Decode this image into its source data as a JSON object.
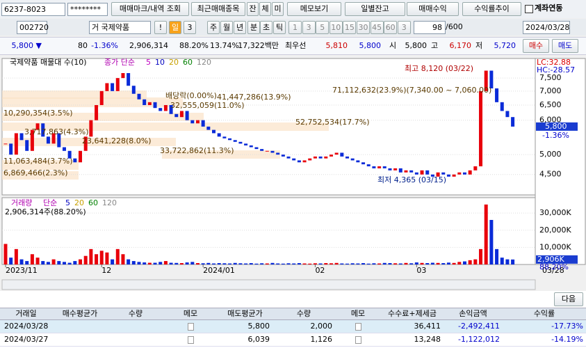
{
  "toolbar": {
    "account": "6237-8023",
    "password": "********",
    "buttons": [
      "매매마크/내역 조회",
      "최근매매종목",
      "잔",
      "체",
      "미",
      "메모보기",
      "일별잔고",
      "매매수익",
      "수익률추이"
    ],
    "checkbox": "계좌연동"
  },
  "toolbar2": {
    "code": "002720",
    "name": "거 국제약품",
    "alert": "!",
    "period": [
      "일",
      "3",
      "주",
      "월",
      "년",
      "분",
      "초",
      "틱"
    ],
    "intervals": [
      "1",
      "3",
      "5",
      "10",
      "15",
      "30",
      "45",
      "60",
      "3"
    ],
    "count": "98",
    "count_max": "/600",
    "date": "2024/03/28"
  },
  "quote": [
    "5,800 ▼",
    "80",
    "-1.36%",
    "2,906,314",
    "88.20%",
    "13.74%",
    "17,322백만",
    "최우선",
    "5,810",
    "5,800",
    "시",
    "5,800",
    "고",
    "6,170",
    "저",
    "5,720",
    "매수",
    "매도"
  ],
  "chart_data": [
    {
      "type": "candlestick",
      "title": "국제약품 매물대 수(10)",
      "legend": [
        "종가 단순",
        "5",
        "10",
        "20",
        "60",
        "120"
      ],
      "log": true,
      "ylim": [
        4040,
        8320
      ],
      "yticks": [
        {
          "value": 7500,
          "label": "7,500"
        },
        {
          "value": 7000,
          "label": "7,000"
        },
        {
          "value": 6500,
          "label": "6,500"
        },
        {
          "value": 6000,
          "label": "6,000"
        },
        {
          "value": 5000,
          "label": "5,000"
        },
        {
          "value": 4500,
          "label": "4,500"
        }
      ],
      "right_labels": [
        "LC:32.88",
        "HC:-28.57"
      ],
      "last_label": "5,800",
      "last_change": "-1.36%",
      "cursor_date": "03/28",
      "categories": [
        "2023/11",
        null,
        null,
        null,
        null,
        null,
        null,
        null,
        null,
        null,
        null,
        null,
        null,
        null,
        null,
        null,
        null,
        null,
        "12",
        null,
        null,
        null,
        null,
        null,
        null,
        null,
        null,
        null,
        null,
        null,
        null,
        null,
        null,
        null,
        null,
        null,
        null,
        "2024/01",
        null,
        null,
        null,
        null,
        null,
        null,
        null,
        null,
        null,
        null,
        null,
        null,
        null,
        null,
        null,
        null,
        null,
        null,
        null,
        null,
        "02",
        null,
        null,
        null,
        null,
        null,
        null,
        null,
        null,
        null,
        null,
        null,
        null,
        null,
        null,
        null,
        null,
        null,
        null,
        "03",
        null,
        null,
        null,
        null,
        null,
        null,
        null,
        null,
        null,
        null,
        null,
        null,
        null,
        null,
        null,
        null,
        null,
        null
      ],
      "close": [
        5300,
        5000,
        5600,
        5400,
        5100,
        5700,
        5900,
        5500,
        5300,
        5600,
        5200,
        5100,
        4900,
        4800,
        5100,
        5500,
        6000,
        6500,
        7000,
        7300,
        7000,
        7500,
        7700,
        7200,
        6900,
        6700,
        6500,
        6600,
        6400,
        6300,
        6500,
        6200,
        6100,
        6300,
        6000,
        5900,
        6000,
        5800,
        5700,
        5600,
        5500,
        5450,
        5400,
        5350,
        5300,
        5250,
        5200,
        5150,
        5100,
        5100,
        5050,
        5000,
        4950,
        4900,
        4850,
        4800,
        4850,
        4900,
        4950,
        4900,
        4950,
        5000,
        5050,
        4950,
        4900,
        4850,
        4800,
        4750,
        4700,
        4650,
        4700,
        4650,
        4600,
        4650,
        4550,
        4600,
        4550,
        4500,
        4600,
        4500,
        4450,
        4550,
        4500,
        4450,
        4500,
        4550,
        4500,
        4600,
        4700,
        7000,
        7800,
        7100,
        6600,
        6300,
        6100,
        5800
      ],
      "annotations": [
        "최고 8,120 (03/22)",
        "71,112,632(23.9%)(7,340.00 ~ 7,060.00)",
        "41,447,286(13.9%)",
        "배당락(0.00%)",
        "32,555,059(11.0%)",
        "10,290,354(3.5%)",
        "3,717,863(4.3%)",
        "52,752,534(17.7%)",
        "23,641,228(8.0%)",
        "33,722,862(11.3%)",
        "11,063,484(3.7%)",
        "6,869,466(2.3%)",
        "최저 4,365 (03/15)"
      ]
    },
    {
      "type": "bar",
      "title": "거래량",
      "legend": [
        "단순",
        "5",
        "20",
        "60",
        "120"
      ],
      "subtitle": "2,906,314주(88.20%)",
      "ylim": [
        0,
        39000
      ],
      "yticks": [
        {
          "value": 30000,
          "label": "30,000K"
        },
        {
          "value": 20000,
          "label": "20,000K"
        },
        {
          "value": 10000,
          "label": "10,000K"
        }
      ],
      "last_label": "2,906K",
      "last_pct": "88.20%",
      "values": [
        12000,
        4000,
        9000,
        3000,
        2000,
        6000,
        4000,
        2000,
        1500,
        3000,
        2000,
        1500,
        1000,
        2000,
        3000,
        5000,
        9000,
        6000,
        8000,
        7000,
        3000,
        9000,
        6000,
        3000,
        2000,
        1500,
        1200,
        1000,
        1000,
        1500,
        2000,
        1000,
        900,
        800,
        1200,
        1500,
        800,
        700,
        900,
        600,
        800,
        700,
        600,
        900,
        700,
        600,
        800,
        500,
        700,
        600,
        900,
        600,
        500,
        700,
        600,
        800,
        600,
        500,
        700,
        600,
        800,
        700,
        900,
        600,
        500,
        700,
        600,
        800,
        500,
        700,
        600,
        900,
        800,
        700,
        600,
        900,
        700,
        1200,
        900,
        800,
        1000,
        900,
        800,
        1100,
        900,
        1500,
        1800,
        2500,
        3000,
        9000,
        35000,
        26000,
        9000,
        4000,
        3000,
        2906
      ]
    }
  ],
  "table": {
    "next": "다음",
    "headers": [
      "거래일",
      "매수평균가",
      "수량",
      "메모",
      "매도평균가",
      "수량",
      "메모",
      "수수료+제세금",
      "손익금액",
      "수익률"
    ],
    "rows": [
      {
        "date": "2024/03/28",
        "sell_avg": "5,800",
        "sell_qty": "2,000",
        "fee": "36,411",
        "pnl": "-2,492,411",
        "ret": "-17.73%"
      },
      {
        "date": "2024/03/27",
        "sell_avg": "6,039",
        "sell_qty": "1,126",
        "fee": "13,248",
        "pnl": "-1,122,012",
        "ret": "-14.19%"
      }
    ]
  }
}
